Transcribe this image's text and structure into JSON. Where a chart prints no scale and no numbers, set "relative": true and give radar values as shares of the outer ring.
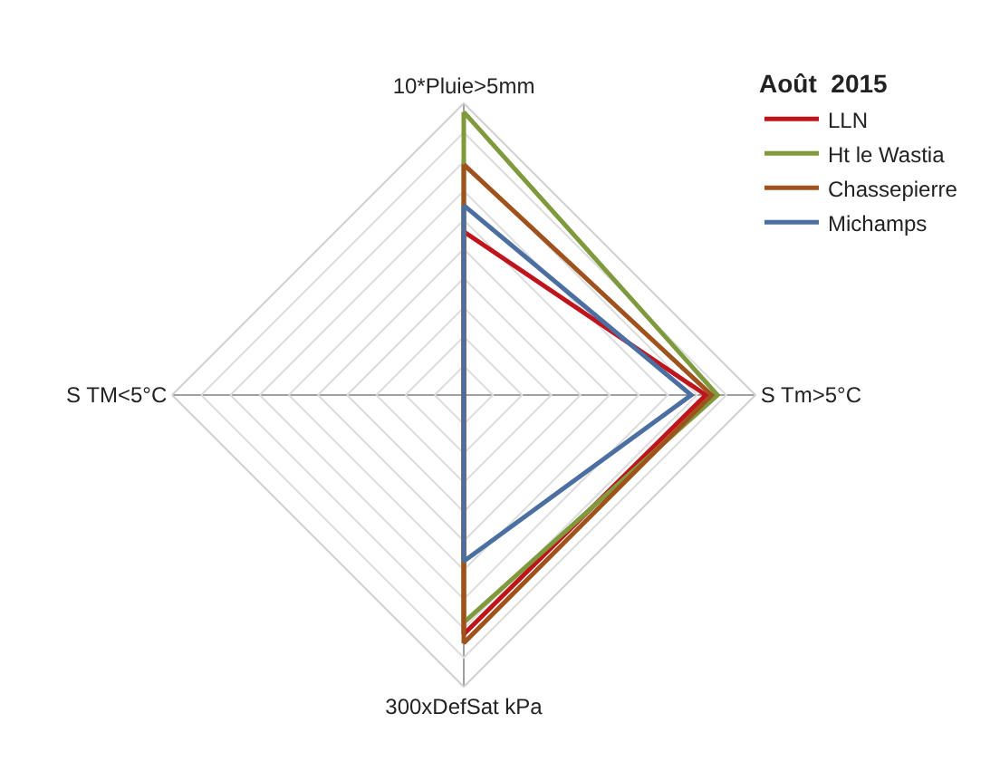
{
  "chart_data": {
    "type": "radar",
    "relative": true,
    "legend_title": "Août  2015",
    "legend": "top right",
    "grid": true,
    "marker": "none",
    "categories": [
      "10*Pluie>5mm",
      "S Tm>5°C",
      "300xDefSat kPa",
      "S TM<5°C"
    ],
    "series": [
      {
        "name": "LLN",
        "color": "#c0141c",
        "values": [
          0.56,
          0.83,
          0.82,
          0
        ]
      },
      {
        "name": "Ht le Wastia",
        "color": "#7f9a3c",
        "values": [
          0.97,
          0.87,
          0.78,
          0
        ]
      },
      {
        "name": "Chassepierre",
        "color": "#a0521c",
        "values": [
          0.79,
          0.85,
          0.85,
          0
        ]
      },
      {
        "name": "Michamps",
        "color": "#4a6fa0",
        "values": [
          0.65,
          0.78,
          0.57,
          0
        ]
      }
    ]
  }
}
